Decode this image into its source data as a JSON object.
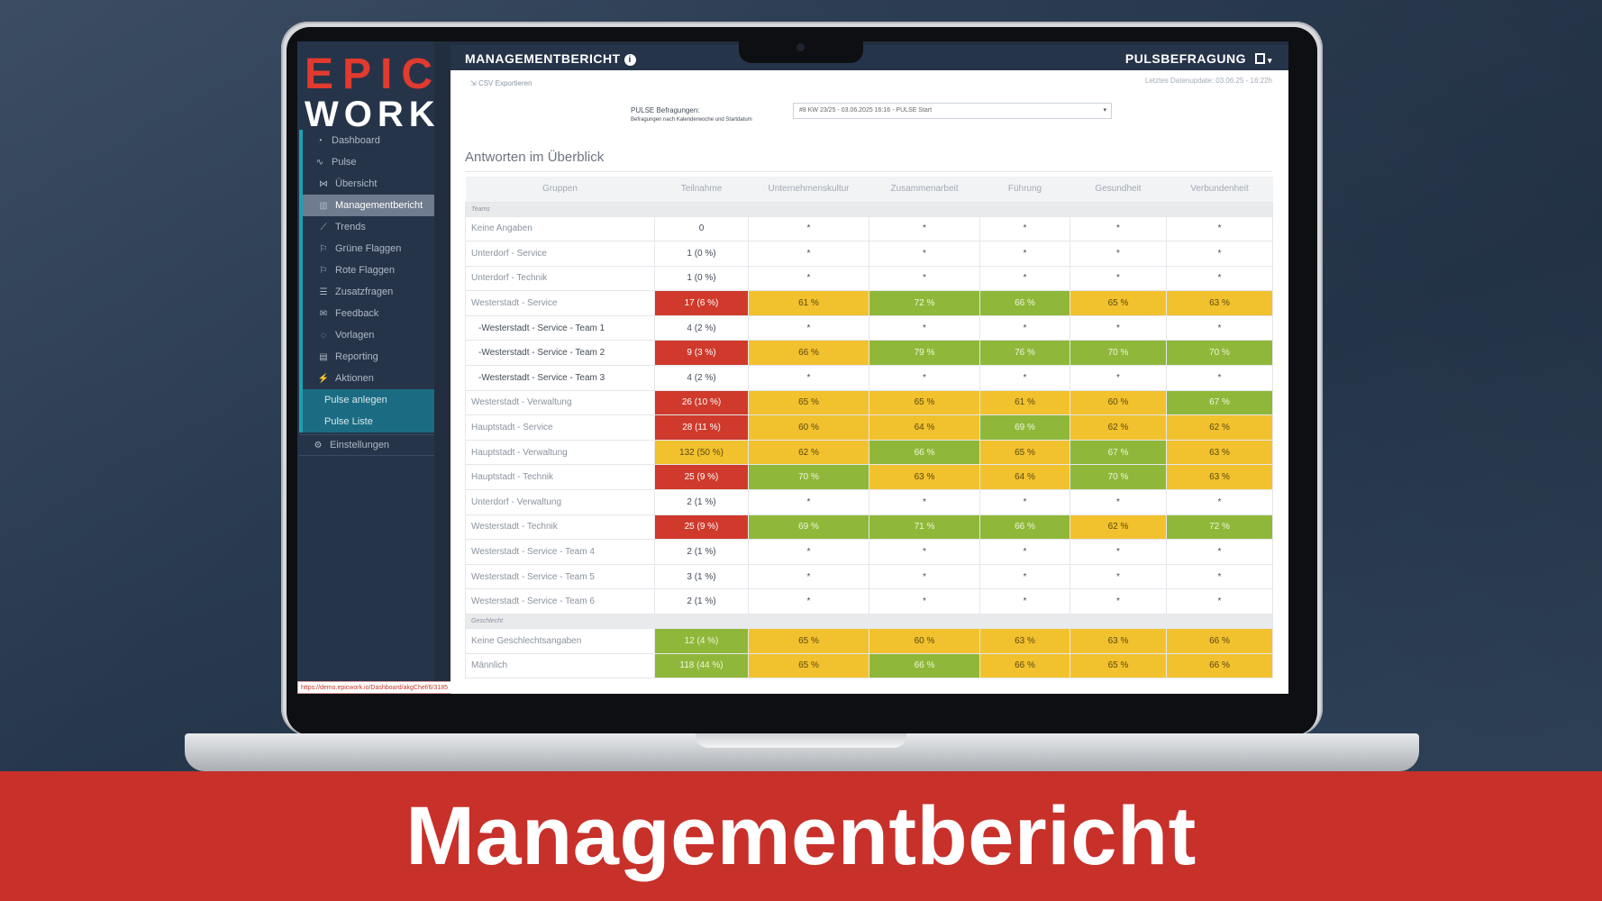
{
  "colors": {
    "brand_red": "#e13a2e",
    "banner_red": "#c8302a",
    "nav_bg": "#26344a",
    "accent_teal": "#1b6c82",
    "status_red": "#cf3a2c",
    "status_yellow": "#f2c12e",
    "status_green": "#8fb83a"
  },
  "logo": {
    "line1": "EPIC",
    "line2": "WORK"
  },
  "sidebar": {
    "items": [
      {
        "label": "Dashboard",
        "icon": "gauge-icon",
        "glyph": "◔",
        "kind": ""
      },
      {
        "label": "Pulse",
        "icon": "pulse-icon",
        "glyph": "∿",
        "kind": ""
      },
      {
        "label": "Übersicht",
        "icon": "network-icon",
        "glyph": "⋈",
        "kind": "sub"
      },
      {
        "label": "Managementbericht",
        "icon": "chart-icon",
        "glyph": "▥",
        "kind": "sub active"
      },
      {
        "label": "Trends",
        "icon": "trend-icon",
        "glyph": "⟋",
        "kind": "sub"
      },
      {
        "label": "Grüne Flaggen",
        "icon": "flag-icon",
        "glyph": "⚐",
        "kind": "sub"
      },
      {
        "label": "Rote Flaggen",
        "icon": "flag-icon",
        "glyph": "⚐",
        "kind": "sub"
      },
      {
        "label": "Zusatzfragen",
        "icon": "list-icon",
        "glyph": "☰",
        "kind": "sub"
      },
      {
        "label": "Feedback",
        "icon": "comments-icon",
        "glyph": "✉",
        "kind": "sub"
      },
      {
        "label": "Vorlagen",
        "icon": "chat-icon",
        "glyph": "◌",
        "kind": "sub"
      },
      {
        "label": "Reporting",
        "icon": "report-icon",
        "glyph": "▤",
        "kind": "sub"
      },
      {
        "label": "Aktionen",
        "icon": "bolt-icon",
        "glyph": "⚡",
        "kind": "sub"
      },
      {
        "label": "Pulse anlegen",
        "icon": "",
        "glyph": "",
        "kind": "teal"
      },
      {
        "label": "Pulse Liste",
        "icon": "",
        "glyph": "",
        "kind": "teal"
      },
      {
        "label": "Einstellungen",
        "icon": "gears-icon",
        "glyph": "⚙",
        "kind": "settings"
      }
    ]
  },
  "status_url": "https://demo.epicwork.io/Dashboard/akgChef/6/3185",
  "header": {
    "title": "MANAGEMENTBERICHT",
    "right_title": "PULSBEFRAGUNG"
  },
  "toolbar": {
    "csv_label": "CSV Exportieren",
    "last_update": "Letztes Datenupdate: 03.06.25 - 16:22h"
  },
  "pulse_filter": {
    "label": "PULSE Befragungen:",
    "sublabel": "Befragungen nach Kalenderwoche und Startdatum",
    "selected": "#8 KW 23/25 - 03.06.2025 16:16 - PULSE Start"
  },
  "section_title": "Antworten im Überblick",
  "table": {
    "headers": [
      "Gruppen",
      "Teilnahme",
      "Unternehmenskultur",
      "Zusammenarbeit",
      "Führung",
      "Gesundheit",
      "Verbundenheit"
    ],
    "groups": [
      {
        "label": "Teams",
        "rows": [
          {
            "name": "Keine Angaben",
            "indent": false,
            "cells": [
              [
                "0",
                ""
              ],
              [
                "*",
                ""
              ],
              [
                "*",
                ""
              ],
              [
                "*",
                ""
              ],
              [
                "*",
                ""
              ],
              [
                "*",
                ""
              ]
            ]
          },
          {
            "name": "Unterdorf - Service",
            "indent": false,
            "cells": [
              [
                "1 (0 %)",
                ""
              ],
              [
                "*",
                ""
              ],
              [
                "*",
                ""
              ],
              [
                "*",
                ""
              ],
              [
                "*",
                ""
              ],
              [
                "*",
                ""
              ]
            ]
          },
          {
            "name": "Unterdorf - Technik",
            "indent": false,
            "cells": [
              [
                "1 (0 %)",
                ""
              ],
              [
                "*",
                ""
              ],
              [
                "*",
                ""
              ],
              [
                "*",
                ""
              ],
              [
                "*",
                ""
              ],
              [
                "*",
                ""
              ]
            ]
          },
          {
            "name": "Westerstadt - Service",
            "indent": false,
            "cells": [
              [
                "17 (6 %)",
                "red"
              ],
              [
                "61 %",
                "yellow"
              ],
              [
                "72 %",
                "green"
              ],
              [
                "66 %",
                "green"
              ],
              [
                "65 %",
                "yellow"
              ],
              [
                "63 %",
                "yellow"
              ]
            ]
          },
          {
            "name": "-Westerstadt - Service - Team 1",
            "indent": true,
            "cells": [
              [
                "4 (2 %)",
                ""
              ],
              [
                "*",
                ""
              ],
              [
                "*",
                ""
              ],
              [
                "*",
                ""
              ],
              [
                "*",
                ""
              ],
              [
                "*",
                ""
              ]
            ]
          },
          {
            "name": "-Westerstadt - Service - Team 2",
            "indent": true,
            "cells": [
              [
                "9 (3 %)",
                "red"
              ],
              [
                "66 %",
                "yellow"
              ],
              [
                "79 %",
                "green"
              ],
              [
                "76 %",
                "green"
              ],
              [
                "70 %",
                "green"
              ],
              [
                "70 %",
                "green"
              ]
            ]
          },
          {
            "name": "-Westerstadt - Service - Team 3",
            "indent": true,
            "cells": [
              [
                "4 (2 %)",
                ""
              ],
              [
                "*",
                ""
              ],
              [
                "*",
                ""
              ],
              [
                "*",
                ""
              ],
              [
                "*",
                ""
              ],
              [
                "*",
                ""
              ]
            ]
          },
          {
            "name": "Westerstadt - Verwaltung",
            "indent": false,
            "cells": [
              [
                "26 (10 %)",
                "red"
              ],
              [
                "65 %",
                "yellow"
              ],
              [
                "65 %",
                "yellow"
              ],
              [
                "61 %",
                "yellow"
              ],
              [
                "60 %",
                "yellow"
              ],
              [
                "67 %",
                "green"
              ]
            ]
          },
          {
            "name": "Hauptstadt - Service",
            "indent": false,
            "cells": [
              [
                "28 (11 %)",
                "red"
              ],
              [
                "60 %",
                "yellow"
              ],
              [
                "64 %",
                "yellow"
              ],
              [
                "69 %",
                "green"
              ],
              [
                "62 %",
                "yellow"
              ],
              [
                "62 %",
                "yellow"
              ]
            ]
          },
          {
            "name": "Hauptstadt - Verwaltung",
            "indent": false,
            "cells": [
              [
                "132 (50 %)",
                "yellow"
              ],
              [
                "62 %",
                "yellow"
              ],
              [
                "66 %",
                "green"
              ],
              [
                "65 %",
                "yellow"
              ],
              [
                "67 %",
                "green"
              ],
              [
                "63 %",
                "yellow"
              ]
            ]
          },
          {
            "name": "Hauptstadt - Technik",
            "indent": false,
            "cells": [
              [
                "25 (9 %)",
                "red"
              ],
              [
                "70 %",
                "green"
              ],
              [
                "63 %",
                "yellow"
              ],
              [
                "64 %",
                "yellow"
              ],
              [
                "70 %",
                "green"
              ],
              [
                "63 %",
                "yellow"
              ]
            ]
          },
          {
            "name": "Unterdorf - Verwaltung",
            "indent": false,
            "cells": [
              [
                "2 (1 %)",
                ""
              ],
              [
                "*",
                ""
              ],
              [
                "*",
                ""
              ],
              [
                "*",
                ""
              ],
              [
                "*",
                ""
              ],
              [
                "*",
                ""
              ]
            ]
          },
          {
            "name": "Westerstadt - Technik",
            "indent": false,
            "cells": [
              [
                "25 (9 %)",
                "red"
              ],
              [
                "69 %",
                "green"
              ],
              [
                "71 %",
                "green"
              ],
              [
                "66 %",
                "green"
              ],
              [
                "62 %",
                "yellow"
              ],
              [
                "72 %",
                "green"
              ]
            ]
          },
          {
            "name": "Westerstadt - Service - Team 4",
            "indent": false,
            "cells": [
              [
                "2 (1 %)",
                ""
              ],
              [
                "*",
                ""
              ],
              [
                "*",
                ""
              ],
              [
                "*",
                ""
              ],
              [
                "*",
                ""
              ],
              [
                "*",
                ""
              ]
            ]
          },
          {
            "name": "Westerstadt - Service - Team 5",
            "indent": false,
            "cells": [
              [
                "3 (1 %)",
                ""
              ],
              [
                "*",
                ""
              ],
              [
                "*",
                ""
              ],
              [
                "*",
                ""
              ],
              [
                "*",
                ""
              ],
              [
                "*",
                ""
              ]
            ]
          },
          {
            "name": "Westerstadt - Service - Team 6",
            "indent": false,
            "cells": [
              [
                "2 (1 %)",
                ""
              ],
              [
                "*",
                ""
              ],
              [
                "*",
                ""
              ],
              [
                "*",
                ""
              ],
              [
                "*",
                ""
              ],
              [
                "*",
                ""
              ]
            ]
          }
        ]
      },
      {
        "label": "Geschlecht",
        "rows": [
          {
            "name": "Keine Geschlechtsangaben",
            "indent": false,
            "cells": [
              [
                "12 (4 %)",
                "green"
              ],
              [
                "65 %",
                "yellow"
              ],
              [
                "60 %",
                "yellow"
              ],
              [
                "63 %",
                "yellow"
              ],
              [
                "63 %",
                "yellow"
              ],
              [
                "66 %",
                "yellow"
              ]
            ]
          },
          {
            "name": "Männlich",
            "indent": false,
            "cells": [
              [
                "118 (44 %)",
                "green"
              ],
              [
                "65 %",
                "yellow"
              ],
              [
                "66 %",
                "green"
              ],
              [
                "66 %",
                "yellow"
              ],
              [
                "65 %",
                "yellow"
              ],
              [
                "66 %",
                "yellow"
              ]
            ]
          }
        ]
      }
    ]
  },
  "banner": {
    "text": "Managementbericht"
  }
}
